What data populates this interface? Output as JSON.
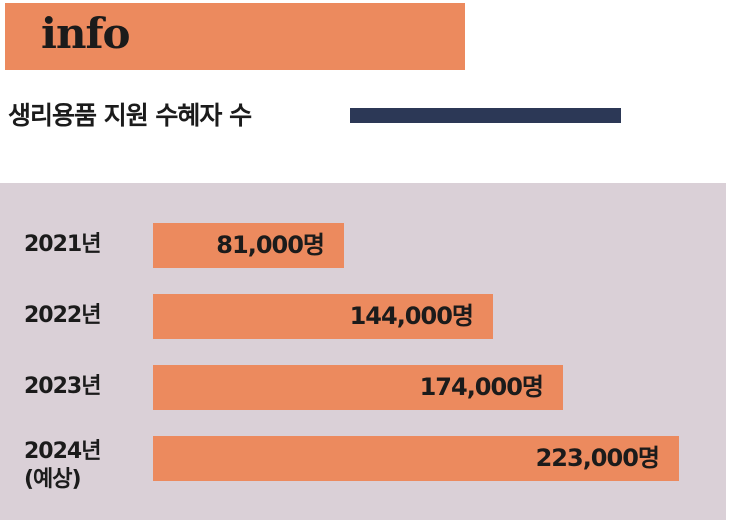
{
  "header": {
    "banner_text": "info"
  },
  "colors": {
    "accent": "#ec8a5e",
    "rule": "#2c3856",
    "panel": "#dad0d7",
    "text": "#1b1b1b"
  },
  "chart_data": {
    "type": "bar",
    "orientation": "horizontal",
    "title": "생리용품 지원 수혜자 수",
    "categories": [
      "2021년",
      "2022년",
      "2023년",
      "2024년 (예상)"
    ],
    "category_lines": [
      [
        "2021년"
      ],
      [
        "2022년"
      ],
      [
        "2023년"
      ],
      [
        "2024년",
        "(예상)"
      ]
    ],
    "values": [
      81000,
      144000,
      174000,
      223000
    ],
    "value_labels": [
      "81,000명",
      "144,000명",
      "174,000명",
      "223,000명"
    ],
    "xlabel": "",
    "ylabel": "",
    "grid": false,
    "legend": "none"
  }
}
